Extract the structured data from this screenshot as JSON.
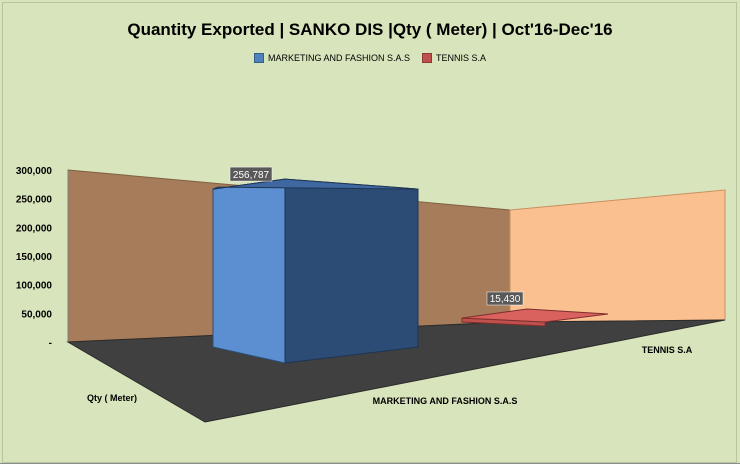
{
  "chart_data": {
    "type": "bar",
    "title": "Quantity Exported | SANKO DIS |Qty ( Meter) | Oct'16-Dec'16",
    "ylabel": "Qty ( Meter)",
    "ylim": [
      0,
      300000
    ],
    "yticks": [
      "-",
      "50,000",
      "100,000",
      "150,000",
      "200,000",
      "250,000",
      "300,000"
    ],
    "series": [
      {
        "name": "MARKETING AND FASHION S.A.S",
        "category": "MARKETING AND FASHION S.A.S",
        "value": 256787,
        "label": "256,787",
        "color": "#4f81bd"
      },
      {
        "name": "TENNIS S.A",
        "category": "TENNIS S.A",
        "value": 15430,
        "label": "15,430",
        "color": "#c0504d"
      }
    ],
    "legend_position": "top",
    "colors": {
      "background": "#d8e4bc",
      "back_wall": "#a67c5b",
      "side_wall": "#fac090",
      "floor": "#404040"
    }
  }
}
